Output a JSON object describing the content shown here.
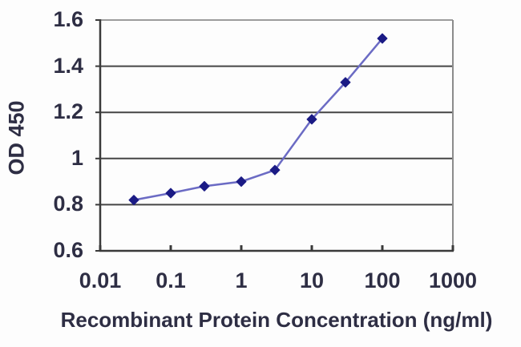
{
  "chart_data": {
    "type": "line",
    "title": "",
    "xlabel": "Recombinant Protein Concentration (ng/ml)",
    "ylabel": "OD 450",
    "x_scale": "log",
    "xlim": [
      0.01,
      1000
    ],
    "ylim": [
      0.6,
      1.6
    ],
    "x_ticks": [
      0.01,
      0.1,
      1,
      10,
      100,
      1000
    ],
    "x_tick_labels": [
      "0.01",
      "0.1",
      "1",
      "10",
      "100",
      "1000"
    ],
    "y_ticks": [
      0.6,
      0.8,
      1,
      1.2,
      1.4,
      1.6
    ],
    "y_tick_labels": [
      "0.6",
      "0.8",
      "1",
      "1.2",
      "1.4",
      "1.6"
    ],
    "grid": "horizontal",
    "legend": "none",
    "series": [
      {
        "name": "OD 450",
        "x": [
          0.03,
          0.1,
          0.3,
          1,
          3,
          10,
          30,
          100
        ],
        "y": [
          0.82,
          0.85,
          0.88,
          0.9,
          0.95,
          1.17,
          1.33,
          1.52
        ],
        "marker": "diamond"
      }
    ],
    "colors": {
      "line": "#6b6bc4",
      "marker": "#1b1b85",
      "gridline": "#454545",
      "axis": "#3a3a3a",
      "plot_top_border": "#9c9c9c",
      "plot_right_border": "#8c8c8c",
      "text": "#2e2e44",
      "background": "#fdfdfd"
    }
  }
}
